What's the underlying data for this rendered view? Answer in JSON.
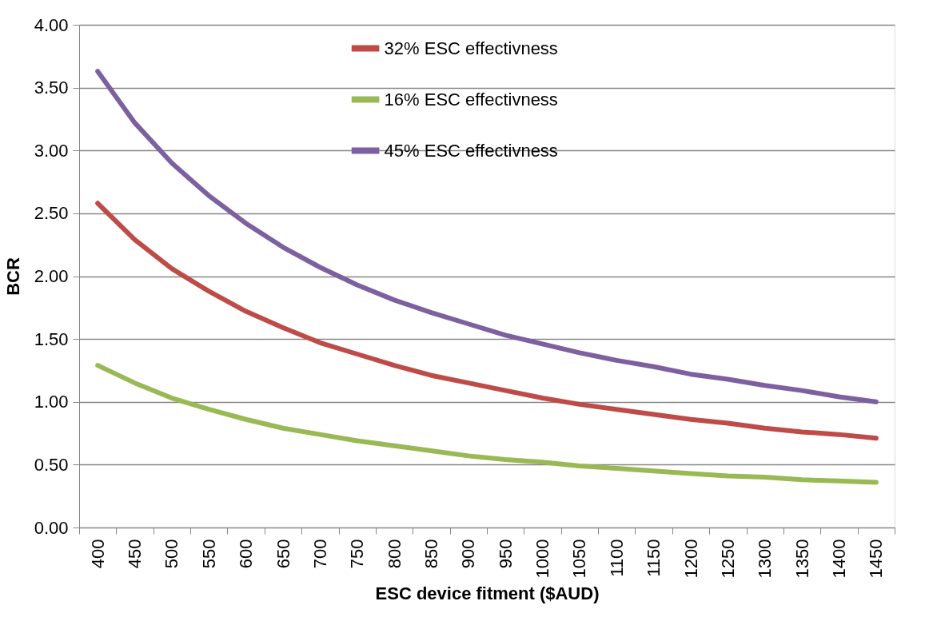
{
  "chart_data": {
    "type": "line",
    "xlabel": "ESC device fitment ($AUD)",
    "ylabel": "BCR",
    "categories": [
      "400",
      "450",
      "500",
      "550",
      "600",
      "650",
      "700",
      "750",
      "800",
      "850",
      "900",
      "950",
      "1000",
      "1050",
      "1100",
      "1150",
      "1200",
      "1250",
      "1300",
      "1350",
      "1400",
      "1450"
    ],
    "series": [
      {
        "name": "32% ESC effectivness",
        "color": "#be4b48",
        "values": [
          2.58,
          2.29,
          2.06,
          1.88,
          1.72,
          1.59,
          1.47,
          1.38,
          1.29,
          1.21,
          1.15,
          1.09,
          1.03,
          0.98,
          0.94,
          0.9,
          0.86,
          0.83,
          0.79,
          0.76,
          0.74,
          0.71
        ]
      },
      {
        "name": "16% ESC effectivness",
        "color": "#98b954",
        "values": [
          1.29,
          1.15,
          1.03,
          0.94,
          0.86,
          0.79,
          0.74,
          0.69,
          0.65,
          0.61,
          0.57,
          0.54,
          0.52,
          0.49,
          0.47,
          0.45,
          0.43,
          0.41,
          0.4,
          0.38,
          0.37,
          0.36
        ]
      },
      {
        "name": "45% ESC effectivness",
        "color": "#7d60a0",
        "values": [
          3.63,
          3.22,
          2.9,
          2.64,
          2.42,
          2.23,
          2.07,
          1.93,
          1.81,
          1.71,
          1.62,
          1.53,
          1.46,
          1.39,
          1.33,
          1.28,
          1.22,
          1.18,
          1.13,
          1.09,
          1.04,
          1.0
        ]
      }
    ],
    "ylim": [
      0,
      4
    ],
    "yticks": [
      {
        "value": 0,
        "label": "0.00"
      },
      {
        "value": 0.5,
        "label": "0.50"
      },
      {
        "value": 1,
        "label": "1.00"
      },
      {
        "value": 1.5,
        "label": "1.50"
      },
      {
        "value": 2,
        "label": "2.00"
      },
      {
        "value": 2.5,
        "label": "2.50"
      },
      {
        "value": 3,
        "label": "3.00"
      },
      {
        "value": 3.5,
        "label": "3.50"
      },
      {
        "value": 4,
        "label": "4.00"
      }
    ],
    "grid": "y",
    "legend": "top",
    "marker": "none",
    "line_style": "solid"
  }
}
